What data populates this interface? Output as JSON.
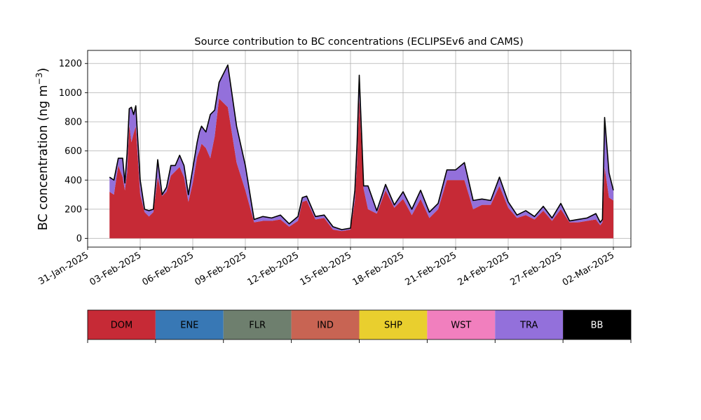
{
  "chart_data": {
    "type": "area",
    "title": "Source contribution to BC concentrations (ECLIPSEv6 and CAMS)",
    "ylabel": "BC concentration (ng m",
    "ylabel_sup": "−3",
    "ylabel_close": ")",
    "xlabel": "",
    "ylim": [
      -60,
      1290
    ],
    "yticks": [
      0,
      200,
      400,
      600,
      800,
      1000,
      1200
    ],
    "x_range": [
      "2025-01-31T00:00",
      "2025-03-03T00:00"
    ],
    "xticks": [
      {
        "date": "2025-01-31",
        "label": "31-Jan-2025"
      },
      {
        "date": "2025-02-03",
        "label": "03-Feb-2025"
      },
      {
        "date": "2025-02-06",
        "label": "06-Feb-2025"
      },
      {
        "date": "2025-02-09",
        "label": "09-Feb-2025"
      },
      {
        "date": "2025-02-12",
        "label": "12-Feb-2025"
      },
      {
        "date": "2025-02-15",
        "label": "15-Feb-2025"
      },
      {
        "date": "2025-02-18",
        "label": "18-Feb-2025"
      },
      {
        "date": "2025-02-21",
        "label": "21-Feb-2025"
      },
      {
        "date": "2025-02-24",
        "label": "24-Feb-2025"
      },
      {
        "date": "2025-02-27",
        "label": "27-Feb-2025"
      },
      {
        "date": "2025-03-02",
        "label": "02-Mar-2025"
      }
    ],
    "grid": true,
    "stack_order": [
      "DOM",
      "ENE",
      "FLR",
      "IND",
      "SHP",
      "WST",
      "TRA"
    ],
    "total_line": {
      "name": "BB",
      "color": "#000000"
    },
    "x": [
      "2025-02-01T06:00",
      "2025-02-01T12:00",
      "2025-02-01T18:00",
      "2025-02-02T00:00",
      "2025-02-02T03:00",
      "2025-02-02T06:00",
      "2025-02-02T09:00",
      "2025-02-02T12:00",
      "2025-02-02T15:00",
      "2025-02-02T18:00",
      "2025-02-03T00:00",
      "2025-02-03T06:00",
      "2025-02-03T12:00",
      "2025-02-03T18:00",
      "2025-02-04T00:00",
      "2025-02-04T06:00",
      "2025-02-04T12:00",
      "2025-02-04T18:00",
      "2025-02-05T00:00",
      "2025-02-05T06:00",
      "2025-02-05T12:00",
      "2025-02-05T18:00",
      "2025-02-06T00:00",
      "2025-02-06T06:00",
      "2025-02-06T09:00",
      "2025-02-06T12:00",
      "2025-02-06T18:00",
      "2025-02-07T00:00",
      "2025-02-07T06:00",
      "2025-02-07T12:00",
      "2025-02-08T00:00",
      "2025-02-08T12:00",
      "2025-02-09T00:00",
      "2025-02-09T12:00",
      "2025-02-10T00:00",
      "2025-02-10T12:00",
      "2025-02-11T00:00",
      "2025-02-11T12:00",
      "2025-02-12T00:00",
      "2025-02-12T06:00",
      "2025-02-12T12:00",
      "2025-02-13T00:00",
      "2025-02-13T12:00",
      "2025-02-14T00:00",
      "2025-02-14T12:00",
      "2025-02-15T00:00",
      "2025-02-15T06:00",
      "2025-02-15T09:00",
      "2025-02-15T12:00",
      "2025-02-15T18:00",
      "2025-02-16T00:00",
      "2025-02-16T12:00",
      "2025-02-17T00:00",
      "2025-02-17T12:00",
      "2025-02-18T00:00",
      "2025-02-18T12:00",
      "2025-02-19T00:00",
      "2025-02-19T12:00",
      "2025-02-20T00:00",
      "2025-02-20T12:00",
      "2025-02-21T00:00",
      "2025-02-21T12:00",
      "2025-02-22T00:00",
      "2025-02-22T12:00",
      "2025-02-23T00:00",
      "2025-02-23T12:00",
      "2025-02-24T00:00",
      "2025-02-24T12:00",
      "2025-02-25T00:00",
      "2025-02-25T12:00",
      "2025-02-26T00:00",
      "2025-02-26T12:00",
      "2025-02-27T00:00",
      "2025-02-27T12:00",
      "2025-02-28T00:00",
      "2025-02-28T12:00",
      "2025-03-01T00:00",
      "2025-03-01T06:00",
      "2025-03-01T09:00",
      "2025-03-01T12:00",
      "2025-03-01T18:00",
      "2025-03-02T00:00"
    ],
    "series": [
      {
        "name": "DOM",
        "color": "#c62a36",
        "values": [
          320,
          300,
          500,
          420,
          330,
          450,
          780,
          660,
          720,
          770,
          300,
          180,
          150,
          180,
          420,
          290,
          320,
          430,
          460,
          490,
          420,
          250,
          380,
          560,
          600,
          650,
          620,
          550,
          700,
          960,
          900,
          520,
          330,
          110,
          120,
          120,
          130,
          80,
          120,
          250,
          260,
          130,
          140,
          60,
          50,
          60,
          260,
          520,
          970,
          340,
          200,
          170,
          330,
          210,
          270,
          160,
          270,
          140,
          200,
          400,
          400,
          400,
          200,
          230,
          230,
          360,
          210,
          140,
          160,
          130,
          190,
          120,
          200,
          110,
          110,
          120,
          130,
          90,
          110,
          490,
          280,
          260
        ]
      },
      {
        "name": "ENE",
        "color": "#3878b5",
        "values": [
          0,
          0,
          0,
          0,
          0,
          0,
          0,
          0,
          0,
          0,
          0,
          0,
          0,
          0,
          0,
          0,
          0,
          0,
          0,
          0,
          0,
          0,
          0,
          0,
          0,
          0,
          0,
          0,
          0,
          0,
          0,
          0,
          0,
          0,
          0,
          0,
          0,
          0,
          0,
          0,
          0,
          0,
          0,
          0,
          0,
          0,
          0,
          0,
          0,
          0,
          0,
          0,
          0,
          0,
          0,
          0,
          0,
          0,
          0,
          0,
          0,
          0,
          0,
          0,
          0,
          0,
          0,
          0,
          0,
          0,
          0,
          0,
          0,
          0,
          0,
          0,
          0,
          0,
          0,
          0,
          0,
          0
        ]
      },
      {
        "name": "FLR",
        "color": "#6e7f6e",
        "values": [
          0,
          0,
          0,
          0,
          0,
          0,
          0,
          0,
          0,
          0,
          0,
          0,
          0,
          0,
          0,
          0,
          0,
          0,
          0,
          0,
          0,
          0,
          0,
          0,
          0,
          0,
          0,
          0,
          0,
          0,
          0,
          0,
          0,
          0,
          0,
          0,
          0,
          0,
          0,
          0,
          0,
          0,
          0,
          0,
          0,
          0,
          0,
          0,
          0,
          0,
          0,
          0,
          0,
          0,
          0,
          0,
          0,
          0,
          0,
          0,
          0,
          0,
          0,
          0,
          0,
          0,
          0,
          0,
          0,
          0,
          0,
          0,
          0,
          0,
          0,
          0,
          0,
          0,
          0,
          0,
          0,
          0
        ]
      },
      {
        "name": "IND",
        "color": "#c86453",
        "values": [
          0,
          0,
          0,
          0,
          0,
          0,
          0,
          0,
          0,
          0,
          0,
          0,
          0,
          0,
          0,
          0,
          0,
          0,
          0,
          0,
          0,
          0,
          0,
          0,
          0,
          0,
          0,
          0,
          0,
          0,
          0,
          0,
          0,
          0,
          0,
          0,
          0,
          0,
          0,
          0,
          0,
          0,
          0,
          0,
          0,
          0,
          0,
          0,
          0,
          0,
          0,
          0,
          0,
          0,
          0,
          0,
          0,
          0,
          0,
          0,
          0,
          0,
          0,
          0,
          0,
          0,
          0,
          0,
          0,
          0,
          0,
          0,
          0,
          0,
          0,
          0,
          0,
          0,
          0,
          0,
          0,
          0
        ]
      },
      {
        "name": "SHP",
        "color": "#e9cf2e",
        "values": [
          0,
          0,
          0,
          0,
          0,
          0,
          0,
          0,
          0,
          0,
          0,
          0,
          0,
          0,
          0,
          0,
          0,
          0,
          0,
          0,
          0,
          0,
          0,
          0,
          0,
          0,
          0,
          0,
          0,
          0,
          0,
          0,
          0,
          0,
          0,
          0,
          0,
          0,
          0,
          0,
          0,
          0,
          0,
          0,
          0,
          0,
          0,
          0,
          0,
          0,
          0,
          0,
          0,
          0,
          0,
          0,
          0,
          0,
          0,
          0,
          0,
          0,
          0,
          0,
          0,
          0,
          0,
          0,
          0,
          0,
          0,
          0,
          0,
          0,
          0,
          0,
          0,
          0,
          0,
          0,
          0,
          0
        ]
      },
      {
        "name": "WST",
        "color": "#f17fbe",
        "values": [
          0,
          0,
          0,
          0,
          0,
          0,
          0,
          0,
          0,
          0,
          0,
          0,
          0,
          0,
          0,
          0,
          0,
          0,
          0,
          0,
          0,
          0,
          0,
          0,
          0,
          0,
          0,
          0,
          0,
          0,
          0,
          0,
          0,
          0,
          0,
          0,
          0,
          0,
          0,
          0,
          0,
          0,
          0,
          0,
          0,
          0,
          0,
          0,
          0,
          0,
          0,
          0,
          0,
          0,
          0,
          0,
          0,
          0,
          0,
          0,
          0,
          0,
          0,
          0,
          0,
          0,
          0,
          0,
          0,
          0,
          0,
          0,
          0,
          0,
          0,
          0,
          0,
          0,
          0,
          0,
          0,
          0
        ]
      },
      {
        "name": "TRA",
        "color": "#9370db",
        "values": [
          100,
          100,
          50,
          130,
          50,
          130,
          110,
          240,
          130,
          140,
          100,
          20,
          40,
          20,
          120,
          10,
          30,
          70,
          40,
          80,
          80,
          50,
          100,
          100,
          130,
          120,
          110,
          300,
          180,
          110,
          290,
          250,
          170,
          20,
          30,
          20,
          30,
          20,
          30,
          30,
          30,
          20,
          20,
          20,
          10,
          10,
          70,
          130,
          150,
          20,
          160,
          20,
          40,
          20,
          50,
          40,
          60,
          40,
          40,
          70,
          70,
          120,
          60,
          40,
          30,
          60,
          40,
          20,
          30,
          20,
          30,
          20,
          40,
          10,
          20,
          20,
          40,
          20,
          20,
          340,
          170,
          70
        ]
      }
    ],
    "legend": {
      "placement": "bottom",
      "entries": [
        {
          "name": "DOM",
          "color": "#c62a36",
          "text_color": "#000000"
        },
        {
          "name": "ENE",
          "color": "#3878b5",
          "text_color": "#000000"
        },
        {
          "name": "FLR",
          "color": "#6e7f6e",
          "text_color": "#000000"
        },
        {
          "name": "IND",
          "color": "#c86453",
          "text_color": "#000000"
        },
        {
          "name": "SHP",
          "color": "#e9cf2e",
          "text_color": "#000000"
        },
        {
          "name": "WST",
          "color": "#f17fbe",
          "text_color": "#000000"
        },
        {
          "name": "TRA",
          "color": "#9370db",
          "text_color": "#000000"
        },
        {
          "name": "BB",
          "color": "#000000",
          "text_color": "#ffffff"
        }
      ]
    }
  }
}
